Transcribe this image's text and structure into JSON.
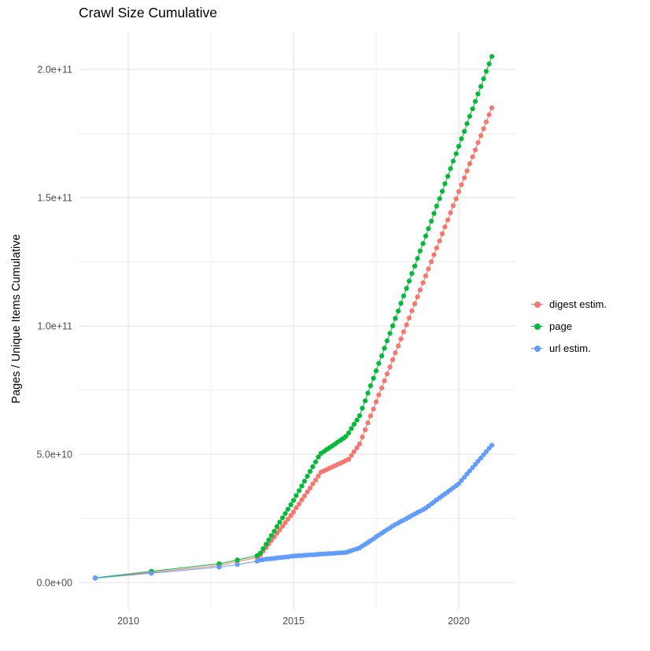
{
  "chart_data": {
    "type": "scatter",
    "title": "Crawl Size Cumulative",
    "xlabel": "",
    "ylabel": "Pages / Unique Items Cumulative",
    "legend_position": "right",
    "grid": true,
    "y_unit": "items (values stored in billions, 1e9)",
    "axes": {
      "x": {
        "tick_values": [
          2010,
          2015,
          2020
        ],
        "tick_labels": [
          "2010",
          "2015",
          "2020"
        ],
        "minor_tick_values": [
          2012.5,
          2017.5
        ],
        "range": [
          2008.5,
          2021.7
        ]
      },
      "y": {
        "tick_values_billions": [
          0,
          50,
          100,
          150,
          200
        ],
        "tick_labels": [
          "0.0e+00",
          "5.0e+10",
          "1.0e+11",
          "1.5e+11",
          "2.0e+11"
        ],
        "minor_tick_values_billions": [
          25,
          75,
          125,
          175
        ],
        "range_billions": [
          -10,
          214
        ]
      }
    },
    "series": [
      {
        "name": "digest estim.",
        "color": "#F8766D",
        "points": [
          [
            2009.0,
            1.7
          ],
          [
            2010.7,
            4.0
          ],
          [
            2012.75,
            6.6
          ],
          [
            2013.3,
            8.2
          ],
          [
            2013.9,
            9.8
          ],
          [
            2014.0,
            10.8
          ],
          [
            2014.08,
            12.2
          ],
          [
            2014.17,
            13.6
          ],
          [
            2014.25,
            15.0
          ],
          [
            2014.33,
            16.4
          ],
          [
            2014.42,
            17.8
          ],
          [
            2014.5,
            19.2
          ],
          [
            2014.58,
            20.5
          ],
          [
            2014.67,
            21.9
          ],
          [
            2014.75,
            23.3
          ],
          [
            2014.83,
            24.7
          ],
          [
            2014.92,
            26.1
          ],
          [
            2015.0,
            27.5
          ],
          [
            2015.08,
            29.1
          ],
          [
            2015.17,
            30.6
          ],
          [
            2015.25,
            32.2
          ],
          [
            2015.33,
            33.7
          ],
          [
            2015.42,
            35.3
          ],
          [
            2015.5,
            36.8
          ],
          [
            2015.58,
            38.4
          ],
          [
            2015.67,
            39.9
          ],
          [
            2015.75,
            41.5
          ],
          [
            2015.83,
            43.0
          ],
          [
            2015.92,
            43.5
          ],
          [
            2016.0,
            44.0
          ],
          [
            2016.08,
            44.5
          ],
          [
            2016.17,
            45.0
          ],
          [
            2016.25,
            45.5
          ],
          [
            2016.33,
            46.0
          ],
          [
            2016.42,
            46.5
          ],
          [
            2016.5,
            47.0
          ],
          [
            2016.58,
            47.5
          ],
          [
            2016.67,
            48.0
          ],
          [
            2016.75,
            49.5
          ],
          [
            2016.83,
            51.0
          ],
          [
            2016.92,
            52.5
          ],
          [
            2017.0,
            54.0
          ],
          [
            2017.08,
            56.7
          ],
          [
            2017.17,
            59.5
          ],
          [
            2017.25,
            62.2
          ],
          [
            2017.33,
            64.9
          ],
          [
            2017.42,
            67.6
          ],
          [
            2017.5,
            70.4
          ],
          [
            2017.58,
            73.1
          ],
          [
            2017.67,
            75.8
          ],
          [
            2017.75,
            78.6
          ],
          [
            2017.83,
            81.3
          ],
          [
            2017.92,
            84.0
          ],
          [
            2018.0,
            86.8
          ],
          [
            2018.08,
            89.5
          ],
          [
            2018.17,
            92.2
          ],
          [
            2018.25,
            94.9
          ],
          [
            2018.33,
            97.7
          ],
          [
            2018.42,
            100.4
          ],
          [
            2018.5,
            103.1
          ],
          [
            2018.58,
            105.9
          ],
          [
            2018.67,
            108.6
          ],
          [
            2018.75,
            111.3
          ],
          [
            2018.83,
            114.0
          ],
          [
            2018.92,
            116.8
          ],
          [
            2019.0,
            119.5
          ],
          [
            2019.08,
            122.2
          ],
          [
            2019.17,
            125.0
          ],
          [
            2019.25,
            127.7
          ],
          [
            2019.33,
            130.4
          ],
          [
            2019.42,
            133.1
          ],
          [
            2019.5,
            135.9
          ],
          [
            2019.58,
            138.6
          ],
          [
            2019.67,
            141.3
          ],
          [
            2019.75,
            144.1
          ],
          [
            2019.83,
            146.8
          ],
          [
            2019.92,
            149.5
          ],
          [
            2020.0,
            152.3
          ],
          [
            2020.08,
            155.0
          ],
          [
            2020.17,
            157.7
          ],
          [
            2020.25,
            160.4
          ],
          [
            2020.33,
            163.2
          ],
          [
            2020.42,
            165.9
          ],
          [
            2020.5,
            168.6
          ],
          [
            2020.58,
            171.4
          ],
          [
            2020.67,
            174.1
          ],
          [
            2020.75,
            176.8
          ],
          [
            2020.83,
            179.5
          ],
          [
            2020.92,
            182.3
          ],
          [
            2021.0,
            185.0
          ]
        ]
      },
      {
        "name": "page",
        "color": "#00BA38",
        "points": [
          [
            2009.0,
            1.8
          ],
          [
            2010.7,
            4.4
          ],
          [
            2012.75,
            7.3
          ],
          [
            2013.3,
            8.8
          ],
          [
            2013.9,
            10.5
          ],
          [
            2014.0,
            11.5
          ],
          [
            2014.08,
            13.2
          ],
          [
            2014.17,
            14.9
          ],
          [
            2014.25,
            16.6
          ],
          [
            2014.33,
            18.3
          ],
          [
            2014.42,
            20.0
          ],
          [
            2014.5,
            21.8
          ],
          [
            2014.58,
            23.5
          ],
          [
            2014.67,
            25.2
          ],
          [
            2014.75,
            26.9
          ],
          [
            2014.83,
            28.6
          ],
          [
            2014.92,
            30.3
          ],
          [
            2015.0,
            32.0
          ],
          [
            2015.08,
            33.9
          ],
          [
            2015.17,
            35.8
          ],
          [
            2015.25,
            37.6
          ],
          [
            2015.33,
            39.5
          ],
          [
            2015.42,
            41.4
          ],
          [
            2015.5,
            43.3
          ],
          [
            2015.58,
            45.1
          ],
          [
            2015.67,
            47.0
          ],
          [
            2015.75,
            48.9
          ],
          [
            2015.83,
            50.3
          ],
          [
            2015.92,
            51.0
          ],
          [
            2016.0,
            51.8
          ],
          [
            2016.08,
            52.5
          ],
          [
            2016.17,
            53.2
          ],
          [
            2016.25,
            53.9
          ],
          [
            2016.33,
            54.7
          ],
          [
            2016.42,
            55.4
          ],
          [
            2016.5,
            56.1
          ],
          [
            2016.58,
            56.9
          ],
          [
            2016.67,
            58.3
          ],
          [
            2016.75,
            60.0
          ],
          [
            2016.83,
            61.7
          ],
          [
            2016.92,
            63.3
          ],
          [
            2017.0,
            65.0
          ],
          [
            2017.08,
            67.9
          ],
          [
            2017.17,
            70.8
          ],
          [
            2017.25,
            73.8
          ],
          [
            2017.33,
            76.7
          ],
          [
            2017.42,
            79.6
          ],
          [
            2017.5,
            82.5
          ],
          [
            2017.58,
            85.4
          ],
          [
            2017.67,
            88.3
          ],
          [
            2017.75,
            91.3
          ],
          [
            2017.83,
            94.2
          ],
          [
            2017.92,
            97.1
          ],
          [
            2018.0,
            100.0
          ],
          [
            2018.08,
            102.9
          ],
          [
            2018.17,
            105.8
          ],
          [
            2018.25,
            108.8
          ],
          [
            2018.33,
            111.7
          ],
          [
            2018.42,
            114.6
          ],
          [
            2018.5,
            117.5
          ],
          [
            2018.58,
            120.4
          ],
          [
            2018.67,
            123.3
          ],
          [
            2018.75,
            126.3
          ],
          [
            2018.83,
            129.2
          ],
          [
            2018.92,
            132.1
          ],
          [
            2019.0,
            135.0
          ],
          [
            2019.08,
            137.9
          ],
          [
            2019.17,
            140.8
          ],
          [
            2019.25,
            143.8
          ],
          [
            2019.33,
            146.7
          ],
          [
            2019.42,
            149.6
          ],
          [
            2019.5,
            152.5
          ],
          [
            2019.58,
            155.4
          ],
          [
            2019.67,
            158.3
          ],
          [
            2019.75,
            161.3
          ],
          [
            2019.83,
            164.2
          ],
          [
            2019.92,
            167.1
          ],
          [
            2020.0,
            170.0
          ],
          [
            2020.08,
            172.9
          ],
          [
            2020.17,
            175.8
          ],
          [
            2020.25,
            178.8
          ],
          [
            2020.33,
            181.7
          ],
          [
            2020.42,
            184.6
          ],
          [
            2020.5,
            187.5
          ],
          [
            2020.58,
            190.4
          ],
          [
            2020.67,
            193.3
          ],
          [
            2020.75,
            196.3
          ],
          [
            2020.83,
            199.2
          ],
          [
            2020.92,
            202.1
          ],
          [
            2021.0,
            205.0
          ]
        ]
      },
      {
        "name": "url estim.",
        "color": "#619CFF",
        "points": [
          [
            2009.0,
            1.7
          ],
          [
            2010.7,
            3.6
          ],
          [
            2012.75,
            6.0
          ],
          [
            2013.3,
            7.0
          ],
          [
            2013.9,
            8.3
          ],
          [
            2014.0,
            8.8
          ],
          [
            2014.08,
            8.9
          ],
          [
            2014.17,
            9.1
          ],
          [
            2014.25,
            9.2
          ],
          [
            2014.33,
            9.3
          ],
          [
            2014.42,
            9.4
          ],
          [
            2014.5,
            9.6
          ],
          [
            2014.58,
            9.7
          ],
          [
            2014.67,
            9.8
          ],
          [
            2014.75,
            9.9
          ],
          [
            2014.83,
            10.0
          ],
          [
            2014.92,
            10.2
          ],
          [
            2015.0,
            10.3
          ],
          [
            2015.08,
            10.4
          ],
          [
            2015.17,
            10.5
          ],
          [
            2015.25,
            10.5
          ],
          [
            2015.33,
            10.6
          ],
          [
            2015.42,
            10.7
          ],
          [
            2015.5,
            10.8
          ],
          [
            2015.58,
            10.8
          ],
          [
            2015.67,
            10.9
          ],
          [
            2015.75,
            11.0
          ],
          [
            2015.83,
            11.1
          ],
          [
            2015.92,
            11.1
          ],
          [
            2016.0,
            11.2
          ],
          [
            2016.08,
            11.3
          ],
          [
            2016.17,
            11.3
          ],
          [
            2016.25,
            11.4
          ],
          [
            2016.33,
            11.5
          ],
          [
            2016.42,
            11.6
          ],
          [
            2016.5,
            11.6
          ],
          [
            2016.58,
            11.7
          ],
          [
            2016.67,
            12.1
          ],
          [
            2016.75,
            12.4
          ],
          [
            2016.83,
            12.8
          ],
          [
            2016.92,
            13.1
          ],
          [
            2017.0,
            13.5
          ],
          [
            2017.08,
            14.2
          ],
          [
            2017.17,
            14.9
          ],
          [
            2017.25,
            15.6
          ],
          [
            2017.33,
            16.3
          ],
          [
            2017.42,
            17.0
          ],
          [
            2017.5,
            17.8
          ],
          [
            2017.58,
            18.5
          ],
          [
            2017.67,
            19.2
          ],
          [
            2017.75,
            19.9
          ],
          [
            2017.83,
            20.6
          ],
          [
            2017.92,
            21.3
          ],
          [
            2018.0,
            22.0
          ],
          [
            2018.08,
            22.6
          ],
          [
            2018.17,
            23.2
          ],
          [
            2018.25,
            23.8
          ],
          [
            2018.33,
            24.3
          ],
          [
            2018.42,
            24.9
          ],
          [
            2018.5,
            25.5
          ],
          [
            2018.58,
            26.1
          ],
          [
            2018.67,
            26.7
          ],
          [
            2018.75,
            27.3
          ],
          [
            2018.83,
            27.8
          ],
          [
            2018.92,
            28.4
          ],
          [
            2019.0,
            29.0
          ],
          [
            2019.08,
            29.8
          ],
          [
            2019.17,
            30.6
          ],
          [
            2019.25,
            31.4
          ],
          [
            2019.33,
            32.2
          ],
          [
            2019.42,
            33.0
          ],
          [
            2019.5,
            33.8
          ],
          [
            2019.58,
            34.5
          ],
          [
            2019.67,
            35.3
          ],
          [
            2019.75,
            36.1
          ],
          [
            2019.83,
            36.9
          ],
          [
            2019.92,
            37.7
          ],
          [
            2020.0,
            38.5
          ],
          [
            2020.08,
            39.8
          ],
          [
            2020.17,
            41.0
          ],
          [
            2020.25,
            42.3
          ],
          [
            2020.33,
            43.5
          ],
          [
            2020.42,
            44.8
          ],
          [
            2020.5,
            46.0
          ],
          [
            2020.58,
            47.3
          ],
          [
            2020.67,
            48.5
          ],
          [
            2020.75,
            49.8
          ],
          [
            2020.83,
            51.0
          ],
          [
            2020.92,
            52.3
          ],
          [
            2021.0,
            53.5
          ]
        ]
      }
    ],
    "style": {
      "grid_major_color": "#e2e2e2",
      "grid_minor_color": "#f0f0f0",
      "tick_label_color": "#4d4d4d",
      "background": "#ffffff"
    }
  }
}
